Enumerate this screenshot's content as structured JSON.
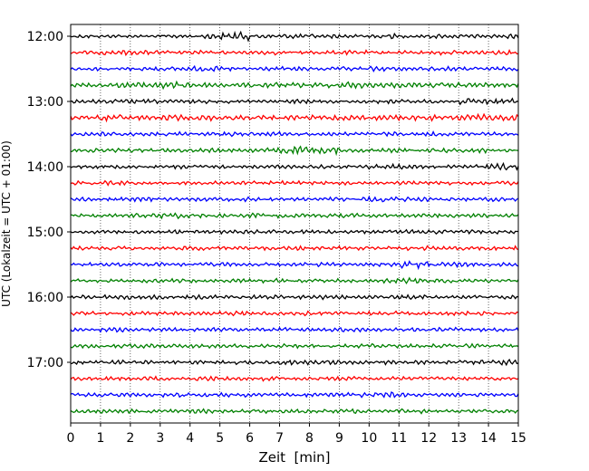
{
  "chart_data": {
    "type": "line",
    "title": "",
    "xlabel": "Zeit  [min]",
    "ylabel": "UTC (Lokalzeit = UTC + 01:00)",
    "xlim": [
      0,
      15
    ],
    "x_ticks": [
      "0",
      "1",
      "2",
      "3",
      "4",
      "5",
      "6",
      "7",
      "8",
      "9",
      "10",
      "11",
      "12",
      "13",
      "14",
      "15"
    ],
    "y_ticks": [
      "12:00",
      "13:00",
      "14:00",
      "15:00",
      "16:00",
      "17:00"
    ],
    "grid": "vertical dotted at each minute",
    "trace_start_utc": "12:00",
    "trace_interval_min": 15,
    "trace_count": 24,
    "trace_colors": [
      "#000000",
      "#ff0000",
      "#0000ff",
      "#008000"
    ],
    "series": [
      {
        "values": [
          0.3,
          0.25,
          0.2,
          0.3,
          0.45,
          0.7,
          0.35,
          0.4,
          0.35,
          0.3,
          0.4,
          0.3,
          0.35,
          0.3,
          0.4,
          0.3
        ]
      },
      {
        "values": [
          0.3,
          0.4,
          0.35,
          0.3,
          0.35,
          0.3,
          0.4,
          0.3,
          0.3,
          0.35,
          0.3,
          0.3,
          0.4,
          0.3,
          0.35,
          0.3
        ]
      },
      {
        "values": [
          0.3,
          0.3,
          0.35,
          0.3,
          0.4,
          0.35,
          0.3,
          0.35,
          0.3,
          0.35,
          0.4,
          0.3,
          0.35,
          0.3,
          0.3,
          0.35
        ]
      },
      {
        "values": [
          0.35,
          0.4,
          0.45,
          0.55,
          0.4,
          0.35,
          0.45,
          0.4,
          0.4,
          0.55,
          0.45,
          0.4,
          0.4,
          0.4,
          0.35,
          0.35
        ]
      },
      {
        "values": [
          0.3,
          0.3,
          0.35,
          0.3,
          0.35,
          0.3,
          0.3,
          0.35,
          0.3,
          0.3,
          0.35,
          0.3,
          0.3,
          0.5,
          0.55,
          0.3
        ]
      },
      {
        "values": [
          0.4,
          0.6,
          0.4,
          0.45,
          0.45,
          0.4,
          0.45,
          0.4,
          0.45,
          0.4,
          0.4,
          0.45,
          0.45,
          0.55,
          0.45,
          0.4
        ]
      },
      {
        "values": [
          0.3,
          0.35,
          0.3,
          0.35,
          0.3,
          0.4,
          0.3,
          0.35,
          0.3,
          0.3,
          0.35,
          0.3,
          0.35,
          0.3,
          0.3,
          0.3
        ]
      },
      {
        "values": [
          0.3,
          0.3,
          0.35,
          0.3,
          0.35,
          0.3,
          0.4,
          0.6,
          0.55,
          0.3,
          0.35,
          0.3,
          0.35,
          0.4,
          0.3,
          0.3
        ]
      },
      {
        "values": [
          0.3,
          0.3,
          0.3,
          0.35,
          0.3,
          0.3,
          0.35,
          0.3,
          0.3,
          0.35,
          0.5,
          0.4,
          0.3,
          0.35,
          0.55,
          0.3
        ]
      },
      {
        "values": [
          0.3,
          0.35,
          0.3,
          0.3,
          0.35,
          0.3,
          0.3,
          0.35,
          0.3,
          0.3,
          0.3,
          0.3,
          0.35,
          0.3,
          0.35,
          0.3
        ]
      },
      {
        "values": [
          0.3,
          0.3,
          0.35,
          0.3,
          0.3,
          0.35,
          0.3,
          0.3,
          0.35,
          0.4,
          0.5,
          0.35,
          0.3,
          0.3,
          0.35,
          0.3
        ]
      },
      {
        "values": [
          0.3,
          0.3,
          0.35,
          0.45,
          0.35,
          0.3,
          0.4,
          0.35,
          0.3,
          0.35,
          0.3,
          0.3,
          0.35,
          0.3,
          0.3,
          0.3
        ]
      },
      {
        "values": [
          0.3,
          0.3,
          0.3,
          0.35,
          0.3,
          0.3,
          0.35,
          0.3,
          0.35,
          0.3,
          0.3,
          0.4,
          0.35,
          0.3,
          0.3,
          0.3
        ]
      },
      {
        "values": [
          0.3,
          0.35,
          0.3,
          0.3,
          0.35,
          0.3,
          0.3,
          0.35,
          0.3,
          0.3,
          0.3,
          0.35,
          0.3,
          0.3,
          0.35,
          0.3
        ]
      },
      {
        "values": [
          0.3,
          0.3,
          0.35,
          0.3,
          0.3,
          0.35,
          0.3,
          0.3,
          0.35,
          0.3,
          0.4,
          0.6,
          0.45,
          0.35,
          0.3,
          0.3
        ]
      },
      {
        "values": [
          0.3,
          0.35,
          0.3,
          0.35,
          0.3,
          0.3,
          0.35,
          0.3,
          0.35,
          0.3,
          0.35,
          0.45,
          0.35,
          0.3,
          0.3,
          0.3
        ]
      },
      {
        "values": [
          0.3,
          0.4,
          0.35,
          0.3,
          0.35,
          0.3,
          0.35,
          0.3,
          0.35,
          0.3,
          0.3,
          0.35,
          0.3,
          0.3,
          0.35,
          0.3
        ]
      },
      {
        "values": [
          0.3,
          0.3,
          0.35,
          0.3,
          0.3,
          0.35,
          0.3,
          0.35,
          0.3,
          0.3,
          0.35,
          0.3,
          0.3,
          0.35,
          0.3,
          0.3
        ]
      },
      {
        "values": [
          0.3,
          0.35,
          0.3,
          0.3,
          0.35,
          0.3,
          0.3,
          0.35,
          0.3,
          0.35,
          0.3,
          0.3,
          0.35,
          0.3,
          0.3,
          0.3
        ]
      },
      {
        "values": [
          0.3,
          0.3,
          0.35,
          0.3,
          0.35,
          0.3,
          0.3,
          0.35,
          0.3,
          0.3,
          0.35,
          0.3,
          0.3,
          0.35,
          0.3,
          0.35
        ]
      },
      {
        "values": [
          0.3,
          0.35,
          0.3,
          0.3,
          0.3,
          0.35,
          0.3,
          0.45,
          0.4,
          0.3,
          0.35,
          0.3,
          0.3,
          0.35,
          0.5,
          0.3
        ]
      },
      {
        "values": [
          0.3,
          0.3,
          0.35,
          0.3,
          0.35,
          0.3,
          0.35,
          0.3,
          0.3,
          0.35,
          0.3,
          0.3,
          0.35,
          0.3,
          0.3,
          0.4
        ]
      },
      {
        "values": [
          0.3,
          0.35,
          0.3,
          0.35,
          0.3,
          0.35,
          0.3,
          0.3,
          0.35,
          0.4,
          0.45,
          0.35,
          0.3,
          0.35,
          0.3,
          0.35
        ]
      },
      {
        "values": [
          0.3,
          0.3,
          0.35,
          0.3,
          0.35,
          0.3,
          0.4,
          0.3,
          0.3,
          0.35,
          0.3,
          0.35,
          0.3,
          0.3,
          0.3,
          0.3
        ]
      }
    ]
  }
}
